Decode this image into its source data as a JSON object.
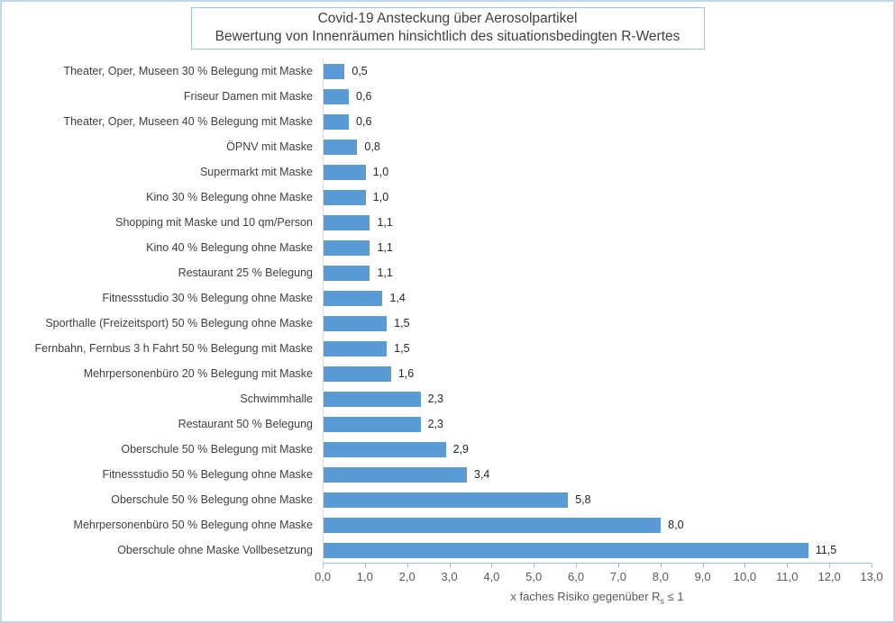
{
  "frame": {
    "background": "#ffffff",
    "border_color": "#bdd7ee"
  },
  "chart_data": {
    "type": "bar",
    "orientation": "horizontal",
    "title": "Covid-19 Ansteckung über Aerosolpartikel",
    "subtitle": "Bewertung von Innenräumen hinsichtlich des situationsbedingten R-Wertes",
    "bar_color": "#5b9bd5",
    "axis_color": "#9dc3e6",
    "title_box_border_color": "#9dc3e6",
    "grid": false,
    "legend": false,
    "xlim": [
      0,
      13
    ],
    "x_ticks": [
      "0,0",
      "1,0",
      "2,0",
      "3,0",
      "4,0",
      "5,0",
      "6,0",
      "7,0",
      "8,0",
      "9,0",
      "10,0",
      "11,0",
      "12,0",
      "13,0"
    ],
    "xlabel": {
      "prefix": "x faches Risiko gegenüber R",
      "sub": "s",
      "suffix": " ≤ 1"
    },
    "categories": [
      "Theater, Oper, Museen 30 % Belegung mit Maske",
      "Friseur Damen mit Maske",
      "Theater, Oper, Museen 40 % Belegung mit Maske",
      "ÖPNV mit Maske",
      "Supermarkt mit Maske",
      "Kino 30 % Belegung ohne Maske",
      "Shopping mit Maske und 10 qm/Person",
      "Kino 40 % Belegung ohne Maske",
      "Restaurant 25 % Belegung",
      "Fitnessstudio 30 % Belegung ohne Maske",
      "Sporthalle  (Freizeitsport) 50 % Belegung ohne Maske",
      "Fernbahn, Fernbus 3 h Fahrt 50 % Belegung mit Maske",
      "Mehrpersonenbüro 20 % Belegung mit Maske",
      "Schwimmhalle",
      "Restaurant 50 % Belegung",
      "Oberschule 50 % Belegung mit Maske",
      "Fitnessstudio 50 % Belegung ohne Maske",
      "Oberschule 50 % Belegung ohne Maske",
      "Mehrpersonenbüro 50 % Belegung ohne Maske",
      "Oberschule ohne Maske Vollbesetzung"
    ],
    "values": [
      0.5,
      0.6,
      0.6,
      0.8,
      1.0,
      1.0,
      1.1,
      1.1,
      1.1,
      1.4,
      1.5,
      1.5,
      1.6,
      2.3,
      2.3,
      2.9,
      3.4,
      5.8,
      8.0,
      11.5
    ],
    "value_labels": [
      "0,5",
      "0,6",
      "0,6",
      "0,8",
      "1,0",
      "1,0",
      "1,1",
      "1,1",
      "1,1",
      "1,4",
      "1,5",
      "1,5",
      "1,6",
      "2,3",
      "2,3",
      "2,9",
      "3,4",
      "5,8",
      "8,0",
      "11,5"
    ]
  }
}
